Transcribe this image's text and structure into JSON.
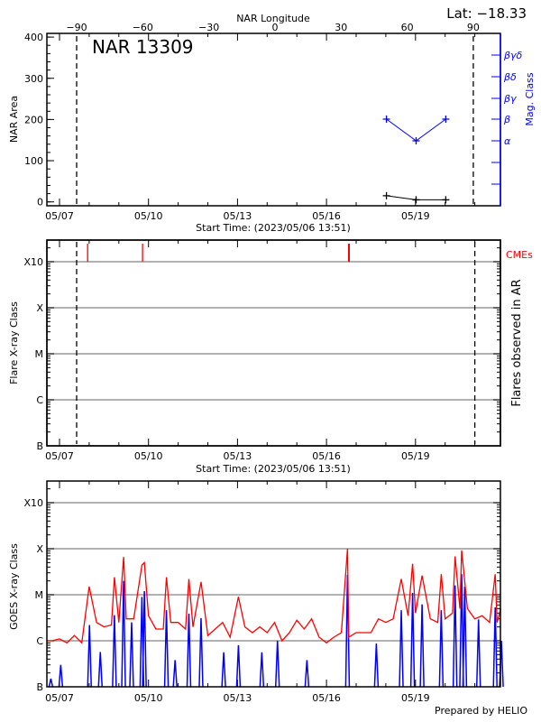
{
  "top_right_label": "Lat: −18.33",
  "footer": "Prepared by HELIO",
  "chart_data": [
    {
      "type": "line",
      "title": "NAR 13309",
      "ylabel": "NAR Area",
      "xlabel": "Start Time: (2023/05/06 13:51)",
      "x2label": "NAR Longitude",
      "y2label": "Mag. Class",
      "ylim": [
        0,
        400
      ],
      "yticks": [
        "0",
        "100",
        "200",
        "300",
        "400"
      ],
      "xticks": [
        "05/07",
        "05/10",
        "05/13",
        "05/16",
        "05/19"
      ],
      "x2ticks": [
        "-90",
        "-60",
        "-30",
        "0",
        "30",
        "60",
        "90"
      ],
      "y2ticks": [
        "βγδ",
        "βδ",
        "βγ",
        "β",
        "α",
        "",
        ""
      ],
      "limb_longitudes": [
        -90,
        90
      ],
      "series": [
        {
          "kind": "area",
          "color": "#000000",
          "x": [
            "05/18 00:30",
            "05/19 00:30",
            "05/20 00:30"
          ],
          "values": [
            15,
            5,
            5
          ]
        },
        {
          "kind": "mag_class",
          "color": "#0000ff",
          "x": [
            "05/18 00:30",
            "05/19 00:30",
            "05/20 00:30"
          ],
          "values": [
            "β",
            "α",
            "β"
          ]
        }
      ]
    },
    {
      "type": "bar",
      "ylabel": "Flare X-ray Class",
      "y2label": "Flares observed in AR",
      "xlabel": "Start Time: (2023/05/06 13:51)",
      "yticks": [
        "B",
        "C",
        "M",
        "X",
        "X10"
      ],
      "xticks": [
        "05/07",
        "05/10",
        "05/13",
        "05/16",
        "05/19"
      ],
      "grid": true,
      "flares": [],
      "cme_label": "CMEs",
      "cme_color": "#ff0000",
      "cmes": [
        "05/07 22:45",
        "05/09 19:10",
        "05/16 18:10"
      ],
      "limb_times": [
        "05/07 13:51",
        "05/21 00:00"
      ]
    },
    {
      "type": "line",
      "ylabel": "GOES X-ray Class",
      "yticks": [
        "B",
        "C",
        "M",
        "X",
        "X10"
      ],
      "xticks": [
        "05/07",
        "05/10",
        "05/13",
        "05/16",
        "05/19"
      ],
      "grid": true,
      "yscale": "log",
      "series": [
        {
          "color": "#ff0000",
          "points": [
            [
              "05/06 14:00",
              1e-06
            ],
            [
              "05/06 18:00",
              1e-06
            ],
            [
              "05/07 00:00",
              1.1e-06
            ],
            [
              "05/07 06:00",
              9e-07
            ],
            [
              "05/07 12:00",
              1.3e-06
            ],
            [
              "05/07 18:00",
              9e-07
            ],
            [
              "05/08 00:00",
              1.5e-05
            ],
            [
              "05/08 06:00",
              2.5e-06
            ],
            [
              "05/08 12:00",
              2e-06
            ],
            [
              "05/08 18:00",
              2.2e-06
            ],
            [
              "05/08 20:25",
              2.4e-05
            ],
            [
              "05/09 00:00",
              2.5e-06
            ],
            [
              "05/09 03:50",
              6.6e-05
            ],
            [
              "05/09 06:00",
              3e-06
            ],
            [
              "05/09 12:00",
              3e-06
            ],
            [
              "05/09 18:40",
              4.4e-05
            ],
            [
              "05/09 20:40",
              5e-05
            ],
            [
              "05/10 00:00",
              3.5e-06
            ],
            [
              "05/10 06:00",
              1.8e-06
            ],
            [
              "05/10 12:00",
              1.8e-06
            ],
            [
              "05/10 14:30",
              2.4e-05
            ],
            [
              "05/10 18:00",
              2.5e-06
            ],
            [
              "05/11 00:00",
              2.5e-06
            ],
            [
              "05/11 06:00",
              1.8e-06
            ],
            [
              "05/11 08:40",
              2.2e-05
            ],
            [
              "05/11 12:00",
              2e-06
            ],
            [
              "05/11 18:30",
              1.9e-05
            ],
            [
              "05/12 00:00",
              1.3e-06
            ],
            [
              "05/12 06:00",
              1.8e-06
            ],
            [
              "05/12 12:00",
              2.5e-06
            ],
            [
              "05/12 18:00",
              1.2e-06
            ],
            [
              "05/13 00:45",
              9e-06
            ],
            [
              "05/13 06:00",
              2e-06
            ],
            [
              "05/13 12:00",
              1.5e-06
            ],
            [
              "05/13 18:00",
              2e-06
            ],
            [
              "05/14 00:00",
              1.5e-06
            ],
            [
              "05/14 06:00",
              2.5e-06
            ],
            [
              "05/14 12:00",
              1e-06
            ],
            [
              "05/14 18:00",
              1.5e-06
            ],
            [
              "05/15 00:00",
              2.8e-06
            ],
            [
              "05/15 06:00",
              1.8e-06
            ],
            [
              "05/15 12:00",
              3e-06
            ],
            [
              "05/15 18:00",
              1.2e-06
            ],
            [
              "05/16 00:00",
              9e-07
            ],
            [
              "05/16 06:00",
              1.2e-06
            ],
            [
              "05/16 12:00",
              1.5e-06
            ],
            [
              "05/16 17:00",
              0.0001
            ],
            [
              "05/16 18:00",
              1.2e-06
            ],
            [
              "05/17 00:00",
              1.5e-06
            ],
            [
              "05/17 06:00",
              1.5e-06
            ],
            [
              "05/17 12:00",
              1.5e-06
            ],
            [
              "05/17 18:00",
              3e-06
            ],
            [
              "05/18 00:00",
              2.5e-06
            ],
            [
              "05/18 06:00",
              3e-06
            ],
            [
              "05/18 12:30",
              2.2e-05
            ],
            [
              "05/18 18:00",
              3.5e-06
            ],
            [
              "05/18 21:40",
              4.7e-05
            ],
            [
              "05/19 00:00",
              4e-06
            ],
            [
              "05/19 05:20",
              2.6e-05
            ],
            [
              "05/19 12:00",
              3e-06
            ],
            [
              "05/19 18:00",
              2.5e-06
            ],
            [
              "05/19 20:50",
              2.8e-05
            ],
            [
              "05/20 00:00",
              3e-06
            ],
            [
              "05/20 06:00",
              4e-06
            ],
            [
              "05/20 08:00",
              6.8e-05
            ],
            [
              "05/20 12:00",
              5e-06
            ],
            [
              "05/20 13:20",
              9.2e-05
            ],
            [
              "05/20 18:00",
              5e-06
            ],
            [
              "05/21 00:00",
              3e-06
            ],
            [
              "05/21 06:00",
              3.5e-06
            ],
            [
              "05/21 12:00",
              2.5e-06
            ],
            [
              "05/21 16:30",
              2.8e-05
            ],
            [
              "05/21 18:00",
              2.5e-06
            ],
            [
              "05/21 21:00",
              5e-06
            ]
          ]
        },
        {
          "color": "#0000ff",
          "points": [
            [
              "05/06 17:00",
              1.5e-07
            ],
            [
              "05/07 01:00",
              3e-07
            ],
            [
              "05/08 00:15",
              2.2e-06
            ],
            [
              "05/08 09:00",
              5.7e-07
            ],
            [
              "05/08 20:25",
              3.6e-06
            ],
            [
              "05/09 03:50",
              2e-05
            ],
            [
              "05/09 10:20",
              2.5e-06
            ],
            [
              "05/09 18:40",
              9e-06
            ],
            [
              "05/09 20:40",
              1.2e-05
            ],
            [
              "05/10 14:30",
              4.6e-06
            ],
            [
              "05/10 21:30",
              3.8e-07
            ],
            [
              "05/11 08:40",
              3.9e-06
            ],
            [
              "05/11 18:30",
              3.1e-06
            ],
            [
              "05/12 12:50",
              5.6e-07
            ],
            [
              "05/13 00:45",
              8e-07
            ],
            [
              "05/13 19:40",
              5.6e-07
            ],
            [
              "05/14 08:20",
              1e-06
            ],
            [
              "05/15 08:10",
              3.8e-07
            ],
            [
              "05/16 17:00",
              2.7e-05
            ],
            [
              "05/17 16:20",
              8.7e-07
            ],
            [
              "05/18 12:30",
              4.6e-06
            ],
            [
              "05/18 21:40",
              1.1e-05
            ],
            [
              "05/19 05:20",
              6.2e-06
            ],
            [
              "05/19 20:50",
              4.6e-06
            ],
            [
              "05/20 08:00",
              1.6e-05
            ],
            [
              "05/20 13:20",
              2.8e-05
            ],
            [
              "05/20 15:50",
              1.5e-05
            ],
            [
              "05/21 03:00",
              2.9e-06
            ],
            [
              "05/21 16:30",
              5.3e-06
            ],
            [
              "05/21 21:30",
              1e-06
            ]
          ]
        }
      ]
    }
  ]
}
